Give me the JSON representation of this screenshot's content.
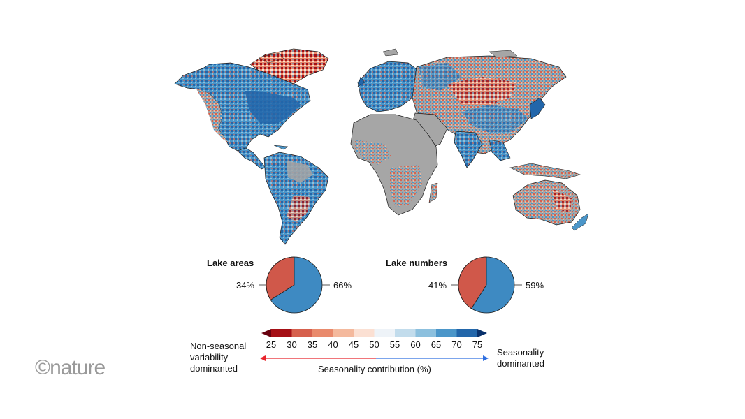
{
  "map": {
    "land_color": "#a6a6a6",
    "coast_color": "#1a1a1a",
    "palette": [
      "#a50f15",
      "#d6604d",
      "#e98a6c",
      "#f4b99d",
      "#fbe0d3",
      "#eef3f8",
      "#c2dcec",
      "#8cc0de",
      "#4b96c9",
      "#2266aa",
      "#0c3f7a"
    ]
  },
  "pies": [
    {
      "title": "Lake areas",
      "left_label": "34%",
      "right_label": "66%",
      "red_share": 34,
      "blue_share": 66
    },
    {
      "title": "Lake numbers",
      "left_label": "41%",
      "right_label": "59%",
      "red_share": 41,
      "blue_share": 59
    }
  ],
  "colorbar": {
    "ticks": [
      "25",
      "30",
      "35",
      "40",
      "45",
      "50",
      "55",
      "60",
      "65",
      "70",
      "75"
    ],
    "colors": [
      "#a50f15",
      "#d6604d",
      "#e98a6c",
      "#f4b99d",
      "#fbe0d3",
      "#eef3f8",
      "#c2dcec",
      "#8cc0de",
      "#4b96c9",
      "#2266aa"
    ],
    "low_end_color": "#67000d",
    "high_end_color": "#08306b",
    "xlabel": "Seasonality contribution (%)",
    "left_label": [
      "Non-seasonal",
      "variability",
      "dominanted"
    ],
    "right_label": [
      "Seasonality",
      "dominanted"
    ],
    "arrow_left_color": "#e8232b",
    "arrow_right_color": "#2f6fe0"
  },
  "logo": "©nature"
}
